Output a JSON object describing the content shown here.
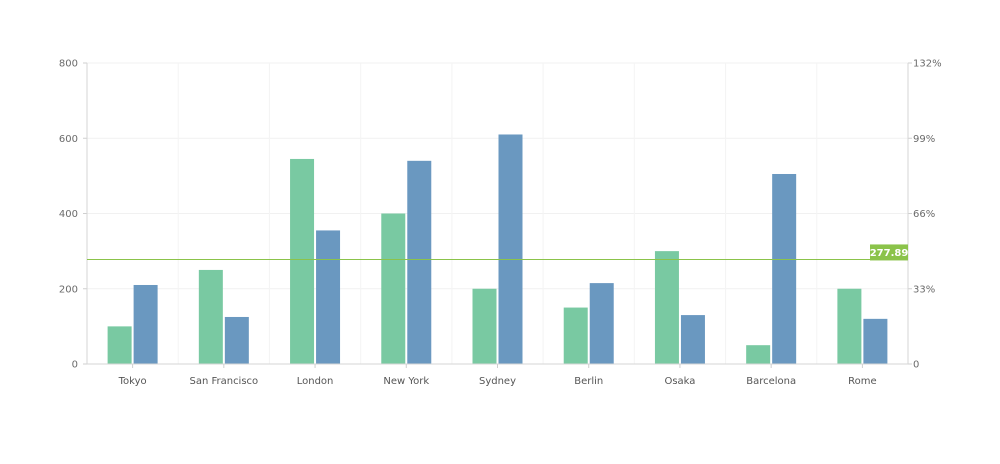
{
  "chart_data": {
    "type": "bar",
    "categories": [
      "Tokyo",
      "San Francisco",
      "London",
      "New York",
      "Sydney",
      "Berlin",
      "Osaka",
      "Barcelona",
      "Rome"
    ],
    "series": [
      {
        "values": [
          100,
          250,
          545,
          400,
          200,
          150,
          300,
          50,
          200
        ],
        "color": "#79c9a2"
      },
      {
        "values": [
          210,
          125,
          355,
          540,
          610,
          215,
          130,
          505,
          120
        ],
        "color": "#6a98c0"
      }
    ],
    "ylim": [
      0,
      800
    ],
    "y_ticks": [
      "0",
      "200",
      "400",
      "600",
      "800"
    ],
    "y2_ticks": [
      "0",
      "33%",
      "66%",
      "99%",
      "132%"
    ],
    "reference_line": {
      "value": 277.89,
      "label": "277.89",
      "color": "#8bc34a"
    },
    "grid": true
  }
}
